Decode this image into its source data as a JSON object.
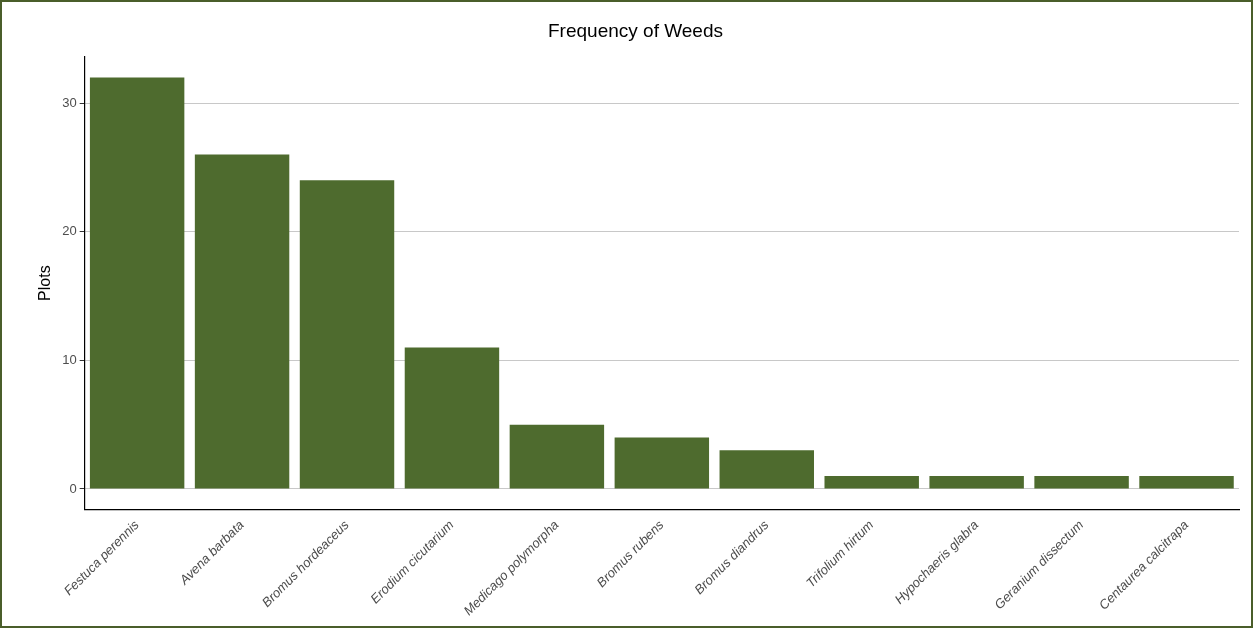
{
  "chart_data": {
    "type": "bar",
    "title": "Frequency of Weeds",
    "ylabel": "Plots",
    "categories": [
      "Festuca perennis",
      "Avena barbata",
      "Bromus hordeaceus",
      "Erodium cicutarium",
      "Medicago polymorpha",
      "Bromus rubens",
      "Bromus diandrus",
      "Trifolium hirtum",
      "Hypochaeris glabra",
      "Geranium dissectum",
      "Centaurea calcitrapa"
    ],
    "values": [
      32,
      26,
      24,
      11,
      5,
      4,
      3,
      1,
      1,
      1,
      1
    ],
    "color": "#4e6b2e",
    "ylim": [
      -1.6,
      33.6
    ],
    "yticks": [
      0,
      10,
      20,
      30
    ],
    "grid": "y",
    "legend": false
  }
}
